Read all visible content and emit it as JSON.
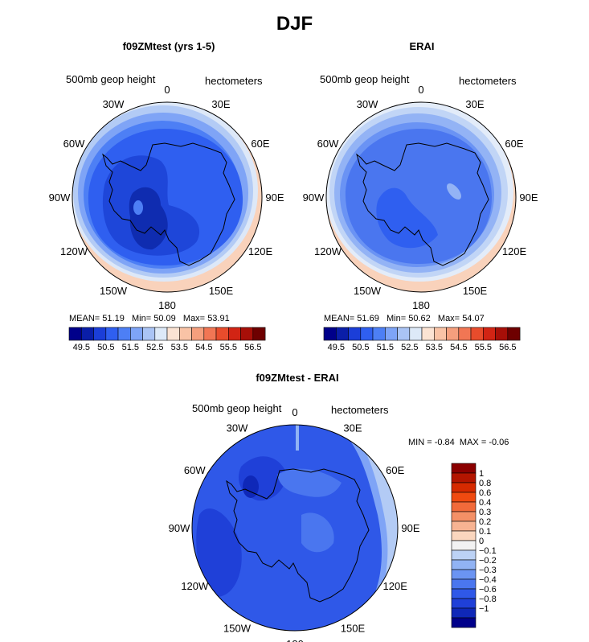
{
  "figure": {
    "title": "DJF"
  },
  "panels": [
    {
      "title": "f09ZMtest (yrs 1-5)",
      "left_label": "500mb geop height",
      "right_label": "hectometers",
      "stats": {
        "mean_label": "MEAN=",
        "mean": "51.19",
        "min_label": "Min=",
        "min": "50.09",
        "max_label": "Max=",
        "max": "53.91"
      }
    },
    {
      "title": "ERAI",
      "left_label": "500mb geop height",
      "right_label": "hectometers",
      "stats": {
        "mean_label": "MEAN=",
        "mean": "51.69",
        "min_label": "Min=",
        "min": "50.62",
        "max_label": "Max=",
        "max": "54.07"
      }
    },
    {
      "title": "f09ZMtest - ERAI",
      "left_label": "500mb geop height",
      "right_label": "hectometers",
      "stats": {
        "min_label": "MIN =",
        "min": "-0.84",
        "max_label": "MAX =",
        "max": "-0.06"
      }
    }
  ],
  "longitude_labels": [
    "0",
    "30E",
    "60E",
    "90E",
    "120E",
    "150E",
    "180",
    "150W",
    "120W",
    "90W",
    "60W",
    "30W"
  ],
  "colorbar_h": {
    "colors": [
      "#00008a",
      "#0a1ea8",
      "#1b3ed8",
      "#2f5ff0",
      "#4d7ff5",
      "#7ea4f7",
      "#aac4f5",
      "#dde9f8",
      "#fbe3d3",
      "#f9c3a6",
      "#f59f7d",
      "#f17654",
      "#e84c2c",
      "#d22414",
      "#a70f08",
      "#6e0000"
    ],
    "labels": [
      "49.5",
      "50.5",
      "51.5",
      "52.5",
      "53.5",
      "54.5",
      "55.5",
      "56.5"
    ]
  },
  "colorbar_v": {
    "colors": [
      "#8b0000",
      "#b31500",
      "#d62a00",
      "#f04a10",
      "#f26a3a",
      "#f49066",
      "#f7b392",
      "#fad6be",
      "#f2f2f2",
      "#bcd2f5",
      "#91b3f4",
      "#6b94f2",
      "#4a76ef",
      "#2f58e8",
      "#1f40d8",
      "#0f28b8",
      "#00008a"
    ],
    "labels": [
      "1",
      "0.8",
      "0.6",
      "0.4",
      "0.3",
      "0.2",
      "0.1",
      "0",
      "-0.1",
      "-0.2",
      "-0.3",
      "-0.4",
      "-0.6",
      "-0.8",
      "-1"
    ]
  },
  "map_colors": {
    "outer": "#f8d9c5",
    "ring1": "#dde8f8",
    "ring2": "#aec7f5",
    "ring3": "#7fa4f6",
    "ring4": "#4d7ff5",
    "ring5": "#2f5ff0",
    "ring6": "#1e46d9",
    "core": "#0f2cb0",
    "land_stroke": "#000000"
  }
}
